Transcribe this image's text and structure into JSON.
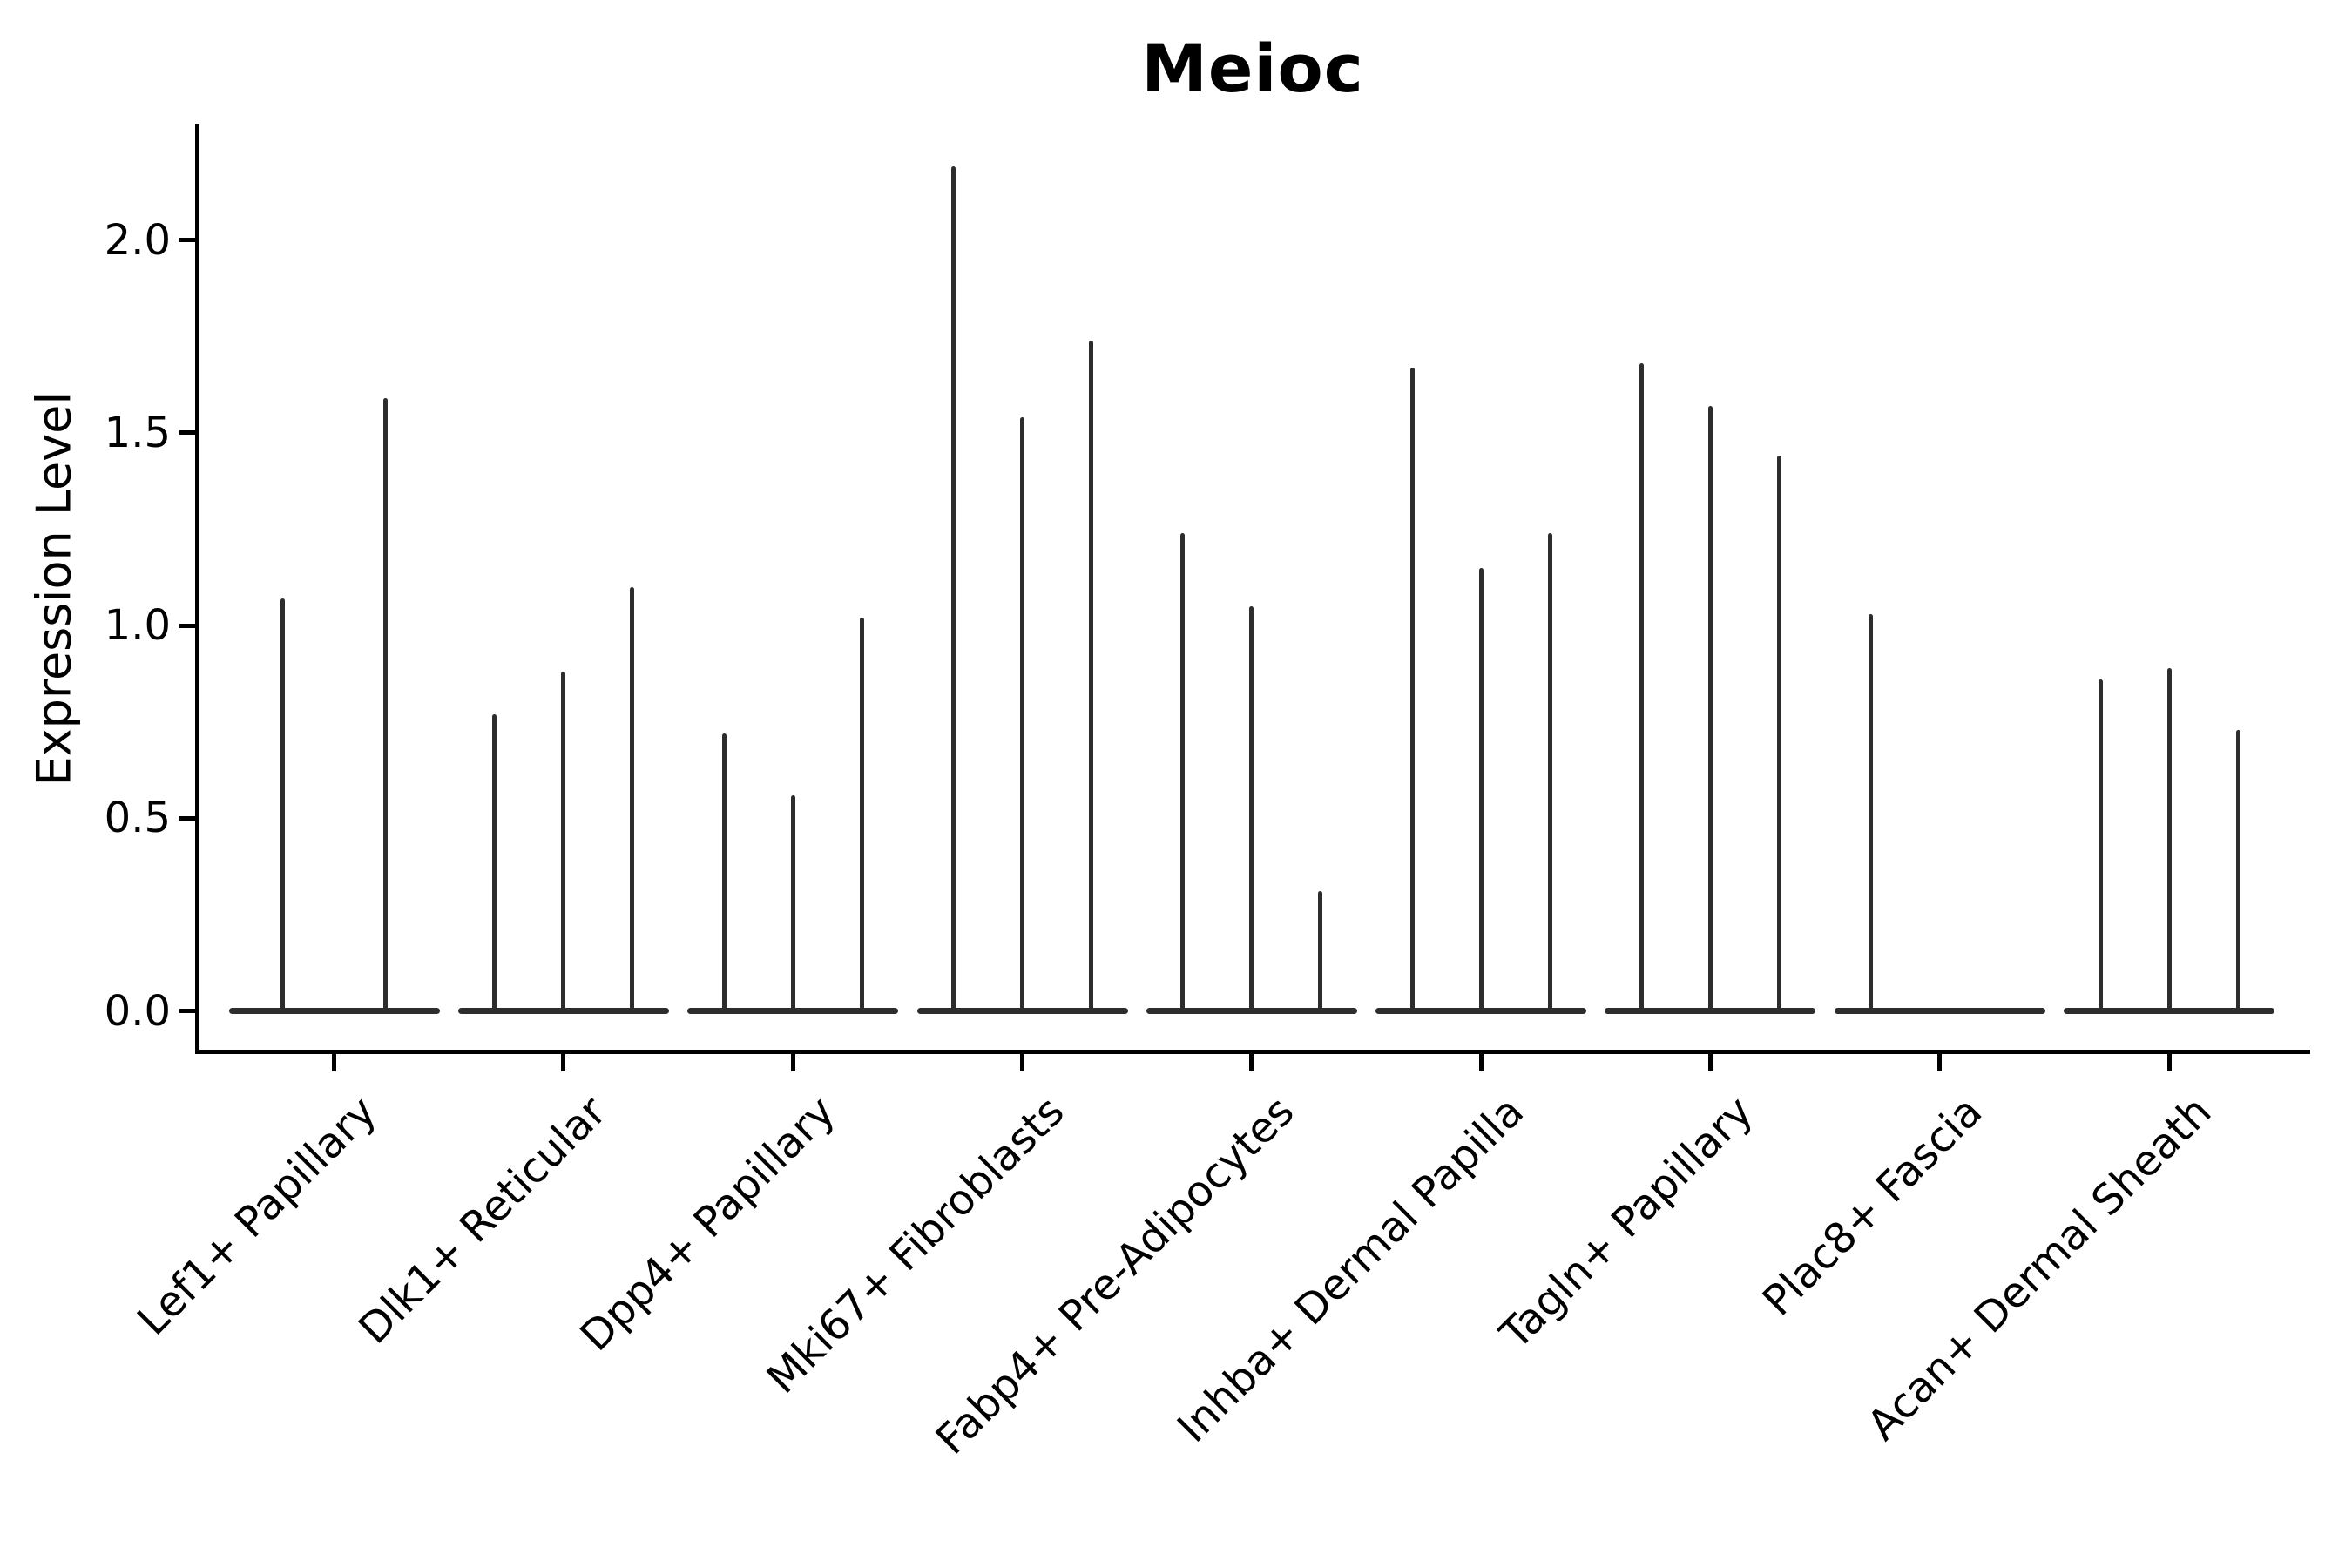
{
  "figure": {
    "title": "Meioc",
    "y_axis_label": "Expression Level"
  },
  "chart_data": {
    "type": "violin",
    "title": "Meioc",
    "xlabel": "",
    "ylabel": "Expression Level",
    "ylim": [
      -0.11,
      2.3
    ],
    "grid": false,
    "legend": null,
    "yticks": [
      "0.0",
      "0.5",
      "1.0",
      "1.5",
      "2.0"
    ],
    "ytick_values": [
      0.0,
      0.5,
      1.0,
      1.5,
      2.0
    ],
    "categories": [
      "Lef1+ Papillary",
      "Dlk1+ Reticular",
      "Dpp4+ Papillary",
      "Mki67+ Fibroblasts",
      "Fabp4+ Pre-Adipocytes",
      "Inhba+ Dermal Papilla",
      "Tagln+ Papillary",
      "Plac8+ Fascia",
      "Acan+ Dermal Sheath"
    ],
    "groups": [
      {
        "label": "Lef1+ Papillary",
        "violins": [
          {
            "offset": -59,
            "max": 1.07
          },
          {
            "offset": 59,
            "max": 1.59
          }
        ]
      },
      {
        "label": "Dlk1+ Reticular",
        "violins": [
          {
            "offset": -79,
            "max": 0.77
          },
          {
            "offset": 0,
            "max": 0.88
          },
          {
            "offset": 79,
            "max": 1.1
          }
        ]
      },
      {
        "label": "Dpp4+ Papillary",
        "violins": [
          {
            "offset": -79,
            "max": 0.72
          },
          {
            "offset": 0,
            "max": 0.56
          },
          {
            "offset": 79,
            "max": 1.02
          }
        ]
      },
      {
        "label": "Mki67+ Fibroblasts",
        "violins": [
          {
            "offset": -79,
            "max": 2.19
          },
          {
            "offset": 0,
            "max": 1.54
          },
          {
            "offset": 79,
            "max": 1.74
          }
        ]
      },
      {
        "label": "Fabp4+ Pre-Adipocytes",
        "violins": [
          {
            "offset": -79,
            "max": 1.24
          },
          {
            "offset": 0,
            "max": 1.05
          },
          {
            "offset": 79,
            "max": 0.31
          }
        ]
      },
      {
        "label": "Inhba+ Dermal Papilla",
        "violins": [
          {
            "offset": -79,
            "max": 1.67
          },
          {
            "offset": 0,
            "max": 1.15
          },
          {
            "offset": 79,
            "max": 1.24
          }
        ]
      },
      {
        "label": "Tagln+ Papillary",
        "violins": [
          {
            "offset": -79,
            "max": 1.68
          },
          {
            "offset": 0,
            "max": 1.57
          },
          {
            "offset": 79,
            "max": 1.44
          }
        ]
      },
      {
        "label": "Plac8+ Fascia",
        "violins": [
          {
            "offset": -79,
            "max": 1.03
          },
          {
            "offset": 0,
            "max": 0.0
          },
          {
            "offset": 79,
            "max": 0.0
          }
        ]
      },
      {
        "label": "Acan+ Dermal Sheath",
        "violins": [
          {
            "offset": -79,
            "max": 0.86
          },
          {
            "offset": 0,
            "max": 0.89
          },
          {
            "offset": 79,
            "max": 0.73
          }
        ]
      }
    ],
    "colors": {
      "violin_line": "#2d2d2d",
      "axis": "#000000",
      "text": "#000000",
      "background": "#ffffff"
    }
  }
}
